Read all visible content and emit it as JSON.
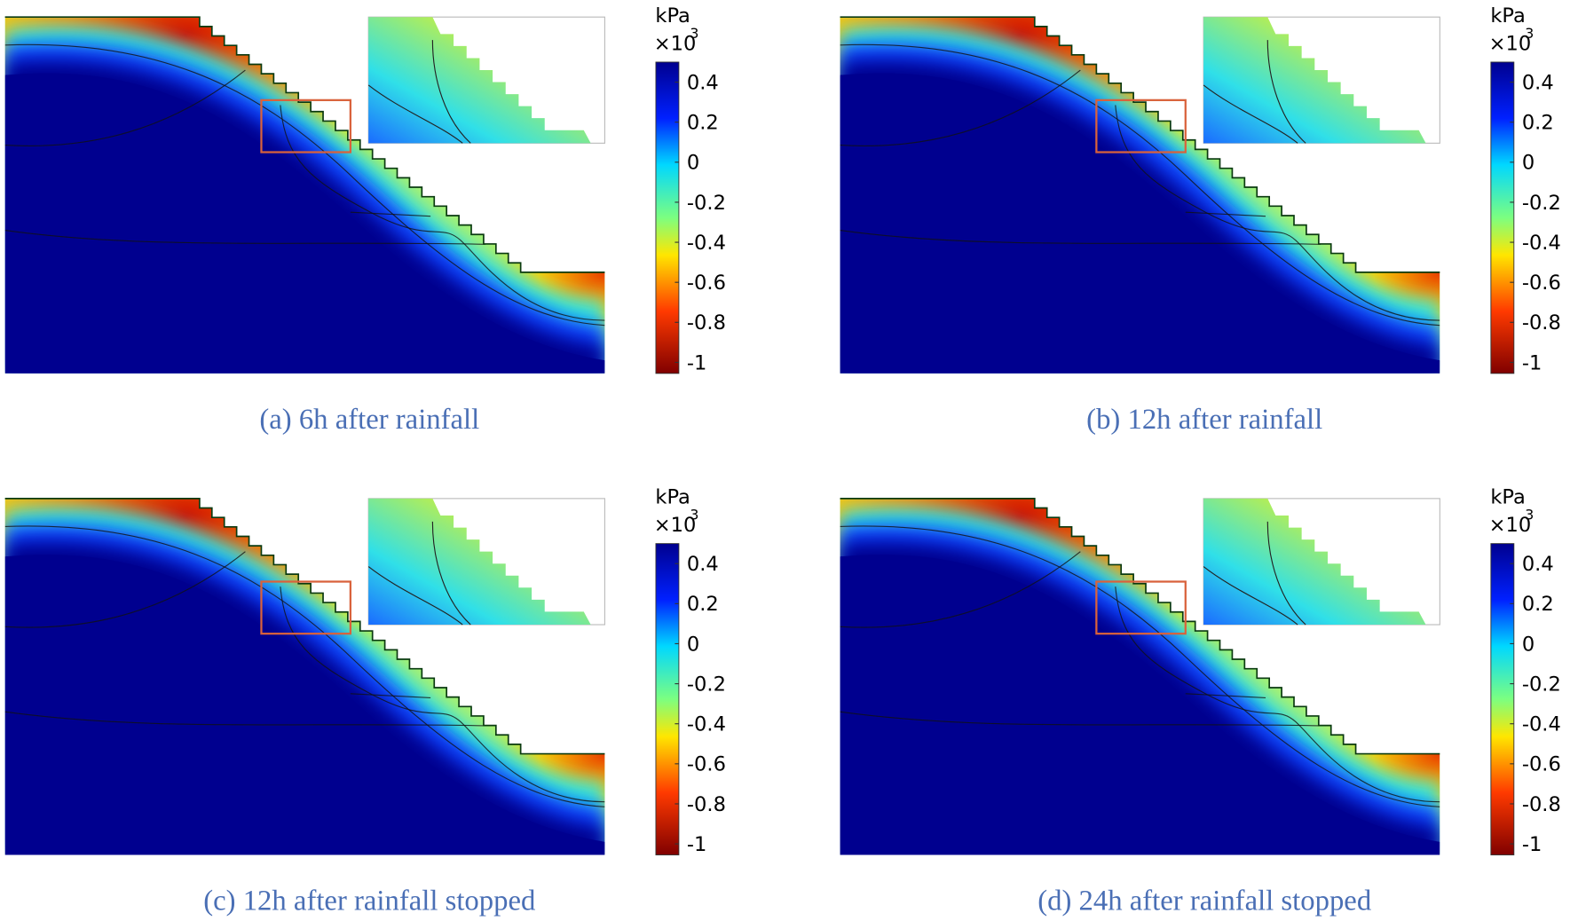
{
  "panels": [
    {
      "caption": "(a) 6h after rainfall",
      "colorbar": {
        "unit": "kPa",
        "multiplier": "×10",
        "exponent": "3",
        "ticks": [
          0.4,
          0.2,
          0,
          -0.2,
          -0.4,
          -0.6,
          -0.8,
          -1
        ]
      }
    },
    {
      "caption": "(b) 12h after rainfall",
      "colorbar": {
        "unit": "kPa",
        "multiplier": "×10",
        "exponent": "3",
        "ticks": [
          0.4,
          0.2,
          0,
          -0.2,
          -0.4,
          -0.6,
          -0.8,
          -1
        ]
      }
    },
    {
      "caption": "(c) 12h after rainfall stopped",
      "colorbar": {
        "unit": "kPa",
        "multiplier": "×10",
        "exponent": "3",
        "ticks": [
          0.4,
          0.2,
          0,
          -0.2,
          -0.4,
          -0.6,
          -0.8,
          -1
        ]
      }
    },
    {
      "caption": "(d) 24h after rainfall stopped",
      "colorbar": {
        "unit": "kPa",
        "multiplier": "×10",
        "exponent": "3",
        "ticks": [
          0.4,
          0.2,
          0,
          -0.2,
          -0.4,
          -0.6,
          -0.8,
          -1
        ]
      }
    }
  ]
}
